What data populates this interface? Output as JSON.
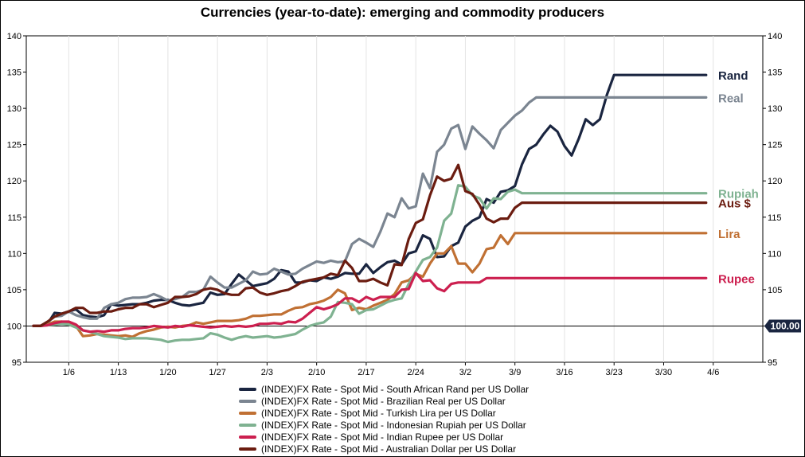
{
  "chart_data": {
    "type": "line",
    "title": "Currencies (year-to-date): emerging and commodity producers",
    "xlabel": "",
    "ylabel": "",
    "ylim": [
      95,
      140
    ],
    "yticks": [
      95,
      100,
      105,
      110,
      115,
      120,
      125,
      130,
      135,
      140
    ],
    "xticks": [
      {
        "label": "1/6",
        "day": 6
      },
      {
        "label": "1/13",
        "day": 13
      },
      {
        "label": "1/20",
        "day": 20
      },
      {
        "label": "1/27",
        "day": 27
      },
      {
        "label": "2/3",
        "day": 34
      },
      {
        "label": "2/10",
        "day": 41
      },
      {
        "label": "2/17",
        "day": 48
      },
      {
        "label": "2/24",
        "day": 55
      },
      {
        "label": "3/2",
        "day": 62
      },
      {
        "label": "3/9",
        "day": 69
      },
      {
        "label": "3/16",
        "day": 76
      },
      {
        "label": "3/23",
        "day": 83
      },
      {
        "label": "3/30",
        "day": 90
      },
      {
        "label": "4/6",
        "day": 97
      }
    ],
    "xlim": [
      0,
      104
    ],
    "x": [
      1,
      2,
      3,
      4,
      5,
      6,
      7,
      8,
      9,
      10,
      11,
      12,
      13,
      14,
      15,
      16,
      17,
      18,
      19,
      20,
      21,
      22,
      23,
      24,
      25,
      26,
      27,
      28,
      29,
      30,
      31,
      32,
      33,
      34,
      35,
      36,
      37,
      38,
      39,
      40,
      41,
      42,
      43,
      44,
      45,
      46,
      47,
      48,
      49,
      50,
      51,
      52,
      53,
      54,
      55,
      56,
      57,
      58,
      59,
      60,
      61,
      62,
      63,
      64,
      65,
      66,
      67,
      68,
      69,
      70,
      71,
      72,
      73,
      74,
      75,
      76,
      77,
      78,
      79,
      80,
      81,
      82,
      83,
      84,
      85,
      86,
      87,
      88,
      89,
      90,
      91,
      92,
      93,
      94,
      95,
      96
    ],
    "reference_line": {
      "value": 100,
      "label": "100.00"
    },
    "series": [
      {
        "name": "(INDEX)FX Rate - Spot Mid - South African Rand per US Dollar",
        "end_label": "Rand",
        "color": "#1a2540",
        "values": [
          100,
          100,
          100.3,
          101.8,
          101.7,
          102,
          102.3,
          101.5,
          101.3,
          101.2,
          101.5,
          103,
          102.8,
          102.9,
          103,
          103,
          103.2,
          103.5,
          103.6,
          103.6,
          103.2,
          102.9,
          102.8,
          103,
          103.2,
          104.6,
          104.3,
          104.4,
          105.8,
          107.1,
          106.3,
          105.5,
          105.7,
          105.9,
          106.5,
          107.7,
          107.5,
          106,
          106,
          106.3,
          106.2,
          106.7,
          106.5,
          106.8,
          107.3,
          107.2,
          107.2,
          108.5,
          107.3,
          108.1,
          108.8,
          109,
          108.5,
          110,
          110.3,
          112.5,
          112,
          109.5,
          109.6,
          111,
          111.5,
          113.7,
          114.5,
          115,
          117.5,
          117,
          118.5,
          118.7,
          119.3,
          122.3,
          124.4,
          125,
          126.4,
          127.6,
          126.8,
          124.8,
          123.5,
          125.8,
          128.5,
          127.7,
          128.5,
          131.9,
          134.6,
          134.6,
          134.6,
          134.6,
          134.6,
          134.6,
          134.6,
          134.6,
          134.6,
          134.6,
          134.6,
          134.6,
          134.6,
          134.6
        ]
      },
      {
        "name": "(INDEX)FX Rate - Spot Mid - Brazilian Real per US Dollar",
        "end_label": "Real",
        "color": "#7b8591",
        "values": [
          100,
          100,
          100.5,
          101.3,
          101.4,
          102,
          101.5,
          101.2,
          101,
          101,
          102.5,
          103,
          103.2,
          103.7,
          103.9,
          103.9,
          104,
          104.4,
          104,
          103.5,
          103.7,
          104,
          104.7,
          104.7,
          105,
          106.8,
          106,
          105.3,
          105.3,
          105.8,
          106.3,
          107.5,
          107.1,
          107.2,
          107.9,
          107.5,
          107.1,
          107.2,
          107.9,
          108.4,
          108.9,
          108.7,
          109,
          108.8,
          108.9,
          111.3,
          112,
          111.5,
          110.9,
          113,
          115.5,
          115,
          117.6,
          116.2,
          116.5,
          121,
          119,
          124,
          125,
          127.2,
          127.7,
          124.4,
          127.5,
          126.5,
          125.6,
          124.5,
          127,
          128,
          129,
          129.7,
          130.8,
          131.5,
          131.5,
          131.5,
          131.5,
          131.5,
          131.5,
          131.5,
          131.5,
          131.5,
          131.5,
          131.5,
          131.5,
          131.5,
          131.5,
          131.5,
          131.5,
          131.5,
          131.5,
          131.5,
          131.5,
          131.5,
          131.5,
          131.5,
          131.5,
          131.5
        ]
      },
      {
        "name": "(INDEX)FX Rate - Spot Mid - Turkish Lira per US Dollar",
        "end_label": "Lira",
        "color": "#c07033",
        "values": [
          100,
          100,
          100.2,
          100.6,
          100.6,
          100.4,
          100,
          98.6,
          98.7,
          98.9,
          98.8,
          98.7,
          98.6,
          98.7,
          98.5,
          99,
          99.3,
          99.5,
          99.8,
          99.9,
          99.8,
          100,
          100.1,
          100.5,
          100.3,
          100.5,
          100.7,
          100.7,
          100.7,
          100.8,
          101,
          101.4,
          101.4,
          101.5,
          101.6,
          101.6,
          102.1,
          102.5,
          102.6,
          103,
          103.2,
          103.5,
          104,
          105,
          104.5,
          102.2,
          102.5,
          102.3,
          102.8,
          103.2,
          103.6,
          104.4,
          106,
          106.3,
          107.2,
          106.8,
          108.6,
          110,
          110,
          111,
          108.6,
          108.6,
          107.4,
          108.6,
          110.6,
          110.8,
          112.5,
          111.3,
          112.8,
          112.8,
          112.8,
          112.8,
          112.8,
          112.8,
          112.8,
          112.8,
          112.8,
          112.8,
          112.8,
          112.8,
          112.8,
          112.8,
          112.8,
          112.8,
          112.8,
          112.8,
          112.8,
          112.8,
          112.8,
          112.8,
          112.8,
          112.8,
          112.8,
          112.8,
          112.8,
          112.8
        ]
      },
      {
        "name": "(INDEX)FX Rate - Spot Mid - Indonesian Rupiah per US Dollar",
        "end_label": "Rupiah",
        "color": "#7fb291",
        "values": [
          100,
          100,
          100.1,
          100.2,
          100.3,
          100.2,
          99.8,
          99.4,
          99.2,
          98.9,
          98.6,
          98.5,
          98.4,
          98.2,
          98.3,
          98.3,
          98.3,
          98.2,
          98.1,
          97.8,
          98,
          98.1,
          98.1,
          98.2,
          98.3,
          99,
          98.8,
          98.4,
          98.1,
          98.4,
          98.6,
          98.4,
          98.5,
          98.6,
          98.4,
          98.5,
          98.7,
          98.9,
          99.5,
          100,
          100.3,
          100.5,
          101.3,
          103.3,
          103.2,
          103,
          101.7,
          102.2,
          102.3,
          102.8,
          103.3,
          103.6,
          103.8,
          105.8,
          107.5,
          109.1,
          109.5,
          110.8,
          114.5,
          115.5,
          119.4,
          119.2,
          118,
          117.6,
          116.2,
          117.6,
          117.5,
          118.5,
          118.8,
          118.3,
          118.3,
          118.3,
          118.3,
          118.3,
          118.3,
          118.3,
          118.3,
          118.3,
          118.3,
          118.3,
          118.3,
          118.3,
          118.3,
          118.3,
          118.3,
          118.3,
          118.3,
          118.3,
          118.3,
          118.3,
          118.3,
          118.3,
          118.3,
          118.3,
          118.3,
          118.3
        ]
      },
      {
        "name": "(INDEX)FX Rate - Spot Mid - Indian Rupee per US Dollar",
        "end_label": "Rupee",
        "color": "#cc1f4f",
        "values": [
          100,
          100,
          100.1,
          100.4,
          100.6,
          100.6,
          100.2,
          99.4,
          99.2,
          99.3,
          99.2,
          99.4,
          99.4,
          99.6,
          99.7,
          99.7,
          99.8,
          100,
          99.9,
          99.8,
          100,
          99.9,
          100.1,
          100,
          99.9,
          99.8,
          99.9,
          100,
          99.9,
          100,
          99.9,
          100,
          100.3,
          100.3,
          100.4,
          100.3,
          100.6,
          100.5,
          101,
          101.8,
          102.6,
          102.3,
          102.6,
          103,
          103.8,
          103.8,
          103.3,
          104,
          103.6,
          104,
          104,
          104,
          105,
          105.1,
          107.3,
          106.2,
          106.3,
          105.2,
          104.8,
          105.8,
          106,
          106,
          106,
          106,
          106.6,
          106.6,
          106.6,
          106.6,
          106.6,
          106.6,
          106.6,
          106.6,
          106.6,
          106.6,
          106.6,
          106.6,
          106.6,
          106.6,
          106.6,
          106.6,
          106.6,
          106.6,
          106.6,
          106.6,
          106.6,
          106.6,
          106.6,
          106.6,
          106.6,
          106.6,
          106.6,
          106.6,
          106.6,
          106.6,
          106.6,
          106.6
        ]
      },
      {
        "name": "(INDEX)FX Rate - Spot Mid - Australian Dollar per US Dollar",
        "end_label": "Aus $",
        "color": "#6b1c10",
        "values": [
          100,
          100,
          100.6,
          101.3,
          101.7,
          102,
          102.5,
          102.5,
          101.8,
          101.8,
          102,
          102,
          102.3,
          102.5,
          102.5,
          103,
          103,
          102.6,
          102.9,
          103.2,
          104,
          104,
          104.1,
          104.4,
          105,
          105.2,
          105,
          104.5,
          104.3,
          104.3,
          105.2,
          105.3,
          104.6,
          104.3,
          104.5,
          104.8,
          105,
          105.5,
          106.1,
          106.3,
          106.5,
          106.7,
          107.2,
          107,
          109,
          108,
          106.2,
          106.2,
          106.5,
          106,
          105.6,
          108.5,
          108.4,
          112,
          114.2,
          114.7,
          118,
          120.6,
          120,
          120.3,
          122.2,
          118.6,
          118.2,
          116.7,
          114.8,
          114.3,
          114.8,
          114.8,
          116.3,
          117,
          117,
          117,
          117,
          117,
          117,
          117,
          117,
          117,
          117,
          117,
          117,
          117,
          117,
          117,
          117,
          117,
          117,
          117,
          117,
          117,
          117,
          117,
          117,
          117,
          117,
          117
        ]
      }
    ],
    "legend_position": "bottom"
  }
}
